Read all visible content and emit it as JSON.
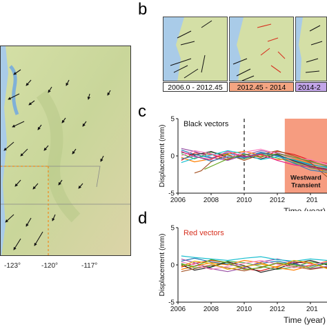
{
  "panels": {
    "b_letter": "b",
    "c_letter": "c",
    "d_letter": "d"
  },
  "map_a": {
    "lon_ticks": [
      "-123°",
      "-120°",
      "-117°"
    ]
  },
  "minimaps": {
    "captions": [
      "2006.0 - 2012.45",
      "2012.45 - 2014",
      "2014-2"
    ],
    "caption_colors": [
      "#ffffff",
      "#f4a582",
      "#c2a5e8"
    ]
  },
  "colors": {
    "ocean": "#a9cbe8",
    "land": "#c8d89a",
    "transient": "#f48b6a",
    "black_vectors": "#111111",
    "red_vectors": "#d7301f"
  },
  "chart_data": [
    {
      "panel": "c",
      "type": "line",
      "xlabel": "Time (year)",
      "ylabel": "Displacement (mm)",
      "xlim": [
        2006,
        2015
      ],
      "ylim": [
        -5,
        5
      ],
      "x_ticks": [
        "2006",
        "2008",
        "2010",
        "2012",
        "201"
      ],
      "y_ticks": [
        "5",
        "0",
        "-5"
      ],
      "legend_text": "Black vectors",
      "dashed_line_x": 2010,
      "shaded_start_x": 2012.45,
      "shaded_label": [
        "Westward",
        "Transient"
      ],
      "series": [
        {
          "color": "#1f77b4",
          "values": [
            [
              2006.2,
              0.8
            ],
            [
              2007,
              0.2
            ],
            [
              2008,
              -0.3
            ],
            [
              2009,
              0.4
            ],
            [
              2010,
              -0.2
            ],
            [
              2011,
              0.5
            ],
            [
              2012,
              0.1
            ],
            [
              2013,
              -0.6
            ],
            [
              2014,
              -1.2
            ],
            [
              2015,
              -1.5
            ]
          ]
        },
        {
          "color": "#e41a1c",
          "values": [
            [
              2006.2,
              -0.6
            ],
            [
              2007,
              0.4
            ],
            [
              2008,
              0.2
            ],
            [
              2009,
              -0.5
            ],
            [
              2010,
              0.3
            ],
            [
              2011,
              -0.2
            ],
            [
              2012,
              0.6
            ],
            [
              2013,
              0.2
            ],
            [
              2014,
              -0.6
            ],
            [
              2015,
              -1.0
            ]
          ]
        },
        {
          "color": "#4daf4a",
          "values": [
            [
              2006.2,
              0.3
            ],
            [
              2007,
              -0.4
            ],
            [
              2008,
              0.5
            ],
            [
              2009,
              0.1
            ],
            [
              2010,
              -0.4
            ],
            [
              2011,
              0.3
            ],
            [
              2012,
              -0.3
            ],
            [
              2013,
              -0.9
            ],
            [
              2014,
              -1.6
            ],
            [
              2015,
              -2.0
            ]
          ]
        },
        {
          "color": "#984ea3",
          "values": [
            [
              2006.2,
              1.0
            ],
            [
              2007,
              0.6
            ],
            [
              2008,
              -0.2
            ],
            [
              2009,
              -0.6
            ],
            [
              2010,
              0.1
            ],
            [
              2011,
              0.7
            ],
            [
              2012,
              0.4
            ],
            [
              2013,
              -0.2
            ],
            [
              2014,
              -0.8
            ],
            [
              2015,
              -1.3
            ]
          ]
        },
        {
          "color": "#ff7f00",
          "values": [
            [
              2006.2,
              -0.2
            ],
            [
              2007,
              -0.8
            ],
            [
              2008,
              -0.4
            ],
            [
              2009,
              0.3
            ],
            [
              2010,
              0.6
            ],
            [
              2011,
              0.1
            ],
            [
              2012,
              -0.5
            ],
            [
              2013,
              -0.4
            ],
            [
              2014,
              -1.0
            ],
            [
              2015,
              -2.4
            ]
          ]
        },
        {
          "color": "#333333",
          "values": [
            [
              2006.2,
              0.5
            ],
            [
              2007,
              0.1
            ],
            [
              2008,
              0.6
            ],
            [
              2009,
              -0.2
            ],
            [
              2010,
              0.0
            ],
            [
              2011,
              -0.4
            ],
            [
              2012,
              0.2
            ],
            [
              2013,
              -0.7
            ],
            [
              2014,
              -1.4
            ],
            [
              2015,
              -1.8
            ]
          ]
        },
        {
          "color": "#17becf",
          "values": [
            [
              2006.2,
              -0.9
            ],
            [
              2007,
              -0.3
            ],
            [
              2008,
              0.1
            ],
            [
              2009,
              0.7
            ],
            [
              2010,
              0.3
            ],
            [
              2011,
              -0.5
            ],
            [
              2012,
              -0.1
            ],
            [
              2013,
              -0.5
            ],
            [
              2014,
              -1.1
            ],
            [
              2015,
              -1.6
            ]
          ]
        },
        {
          "color": "#a65628",
          "values": [
            [
              2007.0,
              -2.3
            ],
            [
              2007.4,
              -2.0
            ],
            [
              2008,
              -0.8
            ],
            [
              2009,
              0.2
            ],
            [
              2010,
              -0.6
            ],
            [
              2011,
              0.2
            ],
            [
              2012,
              0.7
            ],
            [
              2013,
              0.0
            ],
            [
              2014,
              -0.9
            ],
            [
              2015,
              -2.8
            ]
          ]
        },
        {
          "color": "#f781bf",
          "values": [
            [
              2006.2,
              0.0
            ],
            [
              2007,
              0.7
            ],
            [
              2008,
              0.3
            ],
            [
              2009,
              -0.3
            ],
            [
              2010,
              0.5
            ],
            [
              2011,
              0.9
            ],
            [
              2012,
              0.3
            ],
            [
              2013,
              -0.3
            ],
            [
              2014,
              -0.5
            ],
            [
              2015,
              -1.1
            ]
          ]
        },
        {
          "color": "#377eb8",
          "values": [
            [
              2006.2,
              -0.4
            ],
            [
              2007,
              0.0
            ],
            [
              2008,
              -0.7
            ],
            [
              2009,
              -0.1
            ],
            [
              2010,
              -0.3
            ],
            [
              2011,
              0.4
            ],
            [
              2012,
              0.0
            ],
            [
              2013,
              -1.0
            ],
            [
              2014,
              -1.9
            ],
            [
              2015,
              -2.2
            ]
          ]
        },
        {
          "color": "#66a61e",
          "values": [
            [
              2007.6,
              -1.8
            ],
            [
              2008.2,
              -1.2
            ],
            [
              2009,
              -0.4
            ],
            [
              2010,
              0.2
            ],
            [
              2011,
              -0.1
            ],
            [
              2012,
              0.3
            ],
            [
              2013,
              -0.2
            ],
            [
              2014,
              -0.7
            ],
            [
              2015,
              -1.4
            ]
          ]
        },
        {
          "color": "#e7298a",
          "values": [
            [
              2006.2,
              0.6
            ],
            [
              2007,
              -0.1
            ],
            [
              2008,
              -0.5
            ],
            [
              2009,
              0.6
            ],
            [
              2010,
              -0.1
            ],
            [
              2011,
              0.2
            ],
            [
              2012,
              -0.6
            ],
            [
              2013,
              -1.2
            ],
            [
              2014,
              -1.5
            ],
            [
              2015,
              -1.9
            ]
          ]
        }
      ]
    },
    {
      "panel": "d",
      "type": "line",
      "xlabel": "Time (year)",
      "ylabel": "Displacement (mm)",
      "xlim": [
        2006,
        2015
      ],
      "ylim": [
        -5,
        5
      ],
      "x_ticks": [
        "2006",
        "2008",
        "2010",
        "2012",
        "201"
      ],
      "y_ticks": [
        "5",
        "0",
        "-5"
      ],
      "legend_text": "Red vectors",
      "series": [
        {
          "color": "#1f77b4",
          "values": [
            [
              2006.2,
              0.5
            ],
            [
              2007,
              0.9
            ],
            [
              2008,
              0.4
            ],
            [
              2009,
              0.1
            ],
            [
              2010,
              -0.3
            ],
            [
              2011,
              0.2
            ],
            [
              2012,
              0.5
            ],
            [
              2013,
              0.1
            ],
            [
              2014,
              -0.2
            ],
            [
              2015,
              0.3
            ]
          ]
        },
        {
          "color": "#e41a1c",
          "values": [
            [
              2006.2,
              -0.3
            ],
            [
              2007,
              0.2
            ],
            [
              2008,
              0.6
            ],
            [
              2009,
              0.3
            ],
            [
              2010,
              -0.5
            ],
            [
              2011,
              -0.8
            ],
            [
              2012,
              -0.2
            ],
            [
              2013,
              0.4
            ],
            [
              2014,
              0.2
            ],
            [
              2015,
              -0.4
            ]
          ]
        },
        {
          "color": "#4daf4a",
          "values": [
            [
              2006.2,
              0.2
            ],
            [
              2007,
              -0.4
            ],
            [
              2008,
              -0.2
            ],
            [
              2009,
              0.5
            ],
            [
              2010,
              0.3
            ],
            [
              2011,
              -0.2
            ],
            [
              2012,
              -0.6
            ],
            [
              2013,
              -0.3
            ],
            [
              2014,
              0.4
            ],
            [
              2015,
              0.1
            ]
          ]
        },
        {
          "color": "#984ea3",
          "values": [
            [
              2006.2,
              0.8
            ],
            [
              2007,
              0.3
            ],
            [
              2008,
              -0.5
            ],
            [
              2009,
              -0.9
            ],
            [
              2010,
              -0.4
            ],
            [
              2011,
              0.4
            ],
            [
              2012,
              0.8
            ],
            [
              2013,
              0.3
            ],
            [
              2014,
              -0.5
            ],
            [
              2015,
              -0.2
            ]
          ]
        },
        {
          "color": "#ff7f00",
          "values": [
            [
              2006.2,
              -0.6
            ],
            [
              2007,
              -0.2
            ],
            [
              2008,
              0.3
            ],
            [
              2009,
              0.0
            ],
            [
              2010,
              0.6
            ],
            [
              2011,
              0.3
            ],
            [
              2012,
              -0.4
            ],
            [
              2013,
              -0.7
            ],
            [
              2014,
              -0.1
            ],
            [
              2015,
              0.5
            ]
          ]
        },
        {
          "color": "#222222",
          "values": [
            [
              2006.2,
              0.0
            ],
            [
              2007,
              -0.7
            ],
            [
              2008,
              -0.3
            ],
            [
              2009,
              0.4
            ],
            [
              2010,
              -0.1
            ],
            [
              2011,
              -1.0
            ],
            [
              2012,
              -0.5
            ],
            [
              2013,
              0.2
            ],
            [
              2014,
              0.6
            ],
            [
              2015,
              0.0
            ]
          ]
        },
        {
          "color": "#17becf",
          "values": [
            [
              2006.2,
              1.2
            ],
            [
              2007,
              1.0
            ],
            [
              2008,
              0.8
            ],
            [
              2009,
              0.6
            ],
            [
              2010,
              0.9
            ],
            [
              2011,
              1.1
            ],
            [
              2012,
              0.7
            ],
            [
              2013,
              0.5
            ],
            [
              2014,
              0.8
            ],
            [
              2015,
              0.6
            ]
          ]
        },
        {
          "color": "#a65628",
          "values": [
            [
              2006.2,
              -0.9
            ],
            [
              2007,
              -0.5
            ],
            [
              2008,
              0.0
            ],
            [
              2009,
              -0.4
            ],
            [
              2010,
              -0.8
            ],
            [
              2011,
              -0.3
            ],
            [
              2012,
              0.2
            ],
            [
              2013,
              -0.2
            ],
            [
              2014,
              -0.6
            ],
            [
              2015,
              -0.3
            ]
          ]
        },
        {
          "color": "#f781bf",
          "values": [
            [
              2006.2,
              0.4
            ],
            [
              2007,
              0.0
            ],
            [
              2008,
              -0.6
            ],
            [
              2009,
              -0.2
            ],
            [
              2010,
              0.2
            ],
            [
              2011,
              0.6
            ],
            [
              2012,
              0.1
            ],
            [
              2013,
              -0.4
            ],
            [
              2014,
              0.0
            ],
            [
              2015,
              0.4
            ]
          ]
        },
        {
          "color": "#e6ab02",
          "values": [
            [
              2006.2,
              -0.2
            ],
            [
              2007,
              0.5
            ],
            [
              2008,
              0.2
            ],
            [
              2009,
              -0.6
            ],
            [
              2010,
              -0.2
            ],
            [
              2011,
              0.1
            ],
            [
              2012,
              -0.3
            ],
            [
              2013,
              0.6
            ],
            [
              2014,
              0.3
            ],
            [
              2015,
              -0.5
            ]
          ]
        },
        {
          "color": "#66a61e",
          "values": [
            [
              2006.2,
              0.1
            ],
            [
              2007,
              -0.2
            ],
            [
              2008,
              0.7
            ],
            [
              2009,
              0.3
            ],
            [
              2010,
              -0.6
            ],
            [
              2011,
              -0.4
            ],
            [
              2012,
              0.3
            ],
            [
              2013,
              0.0
            ],
            [
              2014,
              -0.4
            ],
            [
              2015,
              0.2
            ]
          ]
        }
      ]
    }
  ]
}
